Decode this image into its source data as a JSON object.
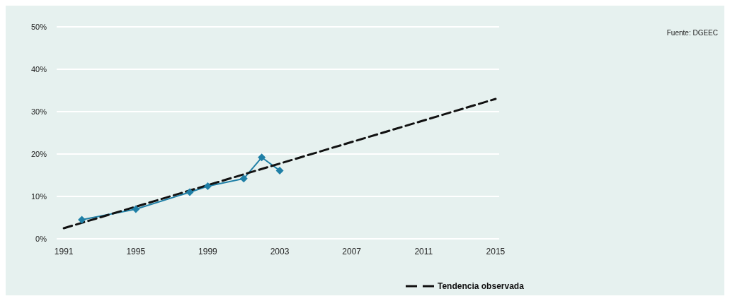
{
  "chart_data": {
    "type": "line",
    "xlim": [
      1990.6,
      2015.2
    ],
    "xticks": [
      1991,
      1995,
      1999,
      2003,
      2007,
      2011,
      2015
    ],
    "ylim": [
      0,
      50
    ],
    "yticks": [
      {
        "value": 0,
        "label": "0%"
      },
      {
        "value": 10,
        "label": "10%"
      },
      {
        "value": 20,
        "label": "20%"
      },
      {
        "value": 30,
        "label": "30%"
      },
      {
        "value": 40,
        "label": "40%"
      },
      {
        "value": 50,
        "label": "50%"
      }
    ],
    "series": [
      {
        "color": "#1f7fa6",
        "x": [
          1992,
          1995,
          1998,
          1999,
          2001,
          2002,
          2003
        ],
        "values": [
          4.5,
          7,
          11,
          12.4,
          14.2,
          19.2,
          16.1
        ],
        "marker": "diamond",
        "line_style": "solid"
      },
      {
        "name": "Tendencia observada",
        "color": "#111111",
        "x": [
          1991,
          2015
        ],
        "values": [
          2.5,
          33
        ],
        "marker": "none",
        "line_style": "dashed"
      }
    ],
    "grid": "y",
    "legend": "bottom",
    "annotations": [
      "Fuente: DGEEC"
    ]
  }
}
